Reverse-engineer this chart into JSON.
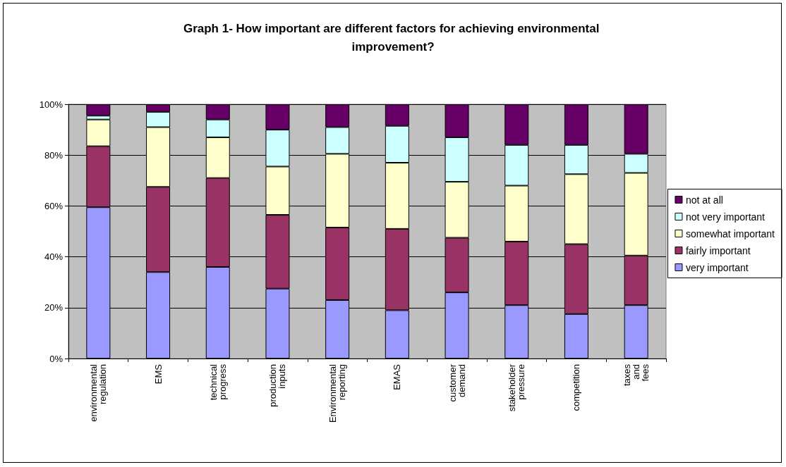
{
  "chart_data": {
    "type": "bar",
    "title": "Graph 1- How important are different factors for achieving environmental improvement?",
    "categories": [
      "environmental regulation",
      "EMS",
      "technical progress",
      "production inputs",
      "Environmental reporting",
      "EMAS",
      "customer demand",
      "stakeholder pressure",
      "competition",
      "taxes and fees"
    ],
    "series": [
      {
        "name": "very important",
        "color": "#9999ff",
        "values": [
          59.5,
          34,
          36,
          27.5,
          23,
          19,
          26,
          21,
          17.5,
          21
        ]
      },
      {
        "name": "fairly important",
        "color": "#993366",
        "values": [
          24,
          33.5,
          35,
          29,
          28.5,
          32,
          21.5,
          25,
          27.5,
          19.5
        ]
      },
      {
        "name": "somewhat important",
        "color": "#ffffcc",
        "values": [
          10.5,
          23.5,
          16,
          19,
          29,
          26,
          22,
          22,
          27.5,
          32.5
        ]
      },
      {
        "name": "not very important",
        "color": "#ccffff",
        "values": [
          1.5,
          6,
          7,
          14.5,
          10.5,
          14.5,
          17.5,
          16,
          11.5,
          7.5
        ]
      },
      {
        "name": "not at all",
        "color": "#660066",
        "values": [
          4.5,
          3,
          6,
          10,
          9,
          8.5,
          13,
          16,
          16,
          19.5
        ]
      }
    ],
    "stacked": true,
    "ylim": [
      0,
      100
    ],
    "yticks": [
      {
        "value": 0,
        "label": "0%"
      },
      {
        "value": 20,
        "label": "20%"
      },
      {
        "value": 40,
        "label": "40%"
      },
      {
        "value": 60,
        "label": "60%"
      },
      {
        "value": 80,
        "label": "80%"
      },
      {
        "value": 100,
        "label": "100%"
      }
    ],
    "grid": "y",
    "legend": "right"
  }
}
